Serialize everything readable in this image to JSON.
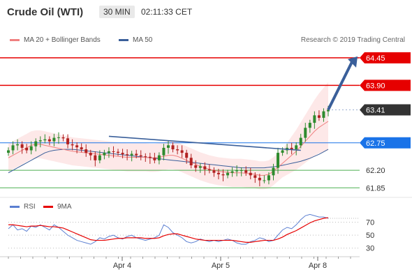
{
  "header": {
    "title": "Crude Oil (WTI)",
    "timeframe": "30 MIN",
    "time": "02:11:33 CET"
  },
  "legend": {
    "ma20_label": "MA 20 + Bollinger Bands",
    "ma50_label": "MA 50",
    "credit": "Research © 2019 Trading Central",
    "rsi_label": "RSI",
    "ma9_label": "9MA"
  },
  "colors": {
    "ma20": "#f08080",
    "ma50": "#3a5f9a",
    "resistance": "#e60000",
    "support": "#4caf50",
    "trend": "#3a5f9a",
    "current": "#333333",
    "pivot": "#1a73e8",
    "rsi": "#5b7fd1",
    "ma9": "#e60000"
  },
  "chart_data": [
    {
      "type": "candlestick",
      "x_labels": [
        "Apr 4",
        "Apr 5",
        "Apr 8"
      ],
      "price_levels": [
        {
          "value": 64.45,
          "label": "64.45",
          "role": "resistance"
        },
        {
          "value": 63.9,
          "label": "63.90",
          "role": "resistance"
        },
        {
          "value": 63.41,
          "label": "63.41",
          "role": "current"
        },
        {
          "value": 62.75,
          "label": "62.75",
          "role": "pivot"
        },
        {
          "value": 62.2,
          "label": "62.20",
          "role": "support"
        },
        {
          "value": 61.85,
          "label": "61.85",
          "role": "support"
        }
      ],
      "ylim": [
        61.7,
        64.7
      ],
      "close": [
        62.6,
        62.7,
        62.72,
        62.65,
        62.6,
        62.68,
        62.78,
        62.8,
        62.82,
        62.78,
        62.85,
        62.86,
        62.84,
        62.72,
        62.7,
        62.66,
        62.62,
        62.55,
        62.5,
        62.4,
        62.5,
        62.55,
        62.58,
        62.57,
        62.55,
        62.52,
        62.5,
        62.53,
        62.5,
        62.48,
        62.47,
        62.45,
        62.4,
        62.5,
        62.65,
        62.7,
        62.62,
        62.6,
        62.55,
        62.45,
        62.3,
        62.25,
        62.28,
        62.22,
        62.2,
        62.15,
        62.12,
        62.1,
        62.15,
        62.18,
        62.2,
        62.2,
        62.15,
        62.1,
        62.05,
        62.0,
        62.0,
        62.1,
        62.25,
        62.55,
        62.6,
        62.65,
        62.62,
        62.7,
        62.85,
        63.05,
        63.15,
        63.3,
        63.25,
        63.38,
        63.41
      ],
      "ma20": [
        62.45,
        62.5,
        62.55,
        62.6,
        62.65,
        62.7,
        62.72,
        62.72,
        62.7,
        62.68,
        62.66,
        62.64,
        62.62,
        62.6,
        62.58,
        62.57,
        62.56,
        62.55,
        62.54,
        62.53,
        62.52,
        62.51,
        62.5,
        62.49,
        62.48,
        62.47,
        62.46,
        62.46,
        62.46,
        62.46,
        62.46,
        62.45,
        62.45,
        62.46,
        62.48,
        62.5,
        62.5,
        62.48,
        62.44,
        62.4,
        62.36,
        62.32,
        62.28,
        62.25,
        62.22,
        62.2,
        62.18,
        62.17,
        62.16,
        62.15,
        62.15,
        62.15,
        62.14,
        62.13,
        62.12,
        62.1,
        62.1,
        62.12,
        62.18,
        62.26,
        62.34,
        62.42,
        62.5,
        62.58,
        62.68,
        62.78,
        62.88,
        62.98,
        63.06,
        63.12,
        63.18
      ],
      "ma50": [
        62.15,
        62.2,
        62.25,
        62.3,
        62.35,
        62.4,
        62.45,
        62.5,
        62.55,
        62.58,
        62.6,
        62.61,
        62.62,
        62.62,
        62.62,
        62.61,
        62.6,
        62.59,
        62.58,
        62.57,
        62.56,
        62.55,
        62.54,
        62.53,
        62.52,
        62.51,
        62.5,
        62.49,
        62.48,
        62.47,
        62.46,
        62.45,
        62.44,
        62.43,
        62.42,
        62.41,
        62.4,
        62.39,
        62.38,
        62.37,
        62.36,
        62.35,
        62.34,
        62.33,
        62.32,
        62.31,
        62.3,
        62.29,
        62.28,
        62.27,
        62.26,
        62.25,
        62.25,
        62.25,
        62.25,
        62.25,
        62.25,
        62.26,
        62.27,
        62.28,
        62.3,
        62.32,
        62.34,
        62.36,
        62.38,
        62.41,
        62.44,
        62.48,
        62.52,
        62.57,
        62.62
      ],
      "projection": {
        "from": 63.41,
        "to": 64.45
      }
    },
    {
      "type": "line",
      "name": "RSI",
      "yticks": [
        30,
        50,
        70
      ],
      "ylim": [
        20,
        90
      ],
      "values": [
        60,
        66,
        58,
        60,
        56,
        64,
        62,
        66,
        62,
        58,
        66,
        62,
        56,
        50,
        46,
        42,
        40,
        38,
        36,
        40,
        46,
        44,
        48,
        50,
        46,
        44,
        48,
        50,
        46,
        44,
        42,
        44,
        46,
        50,
        66,
        62,
        54,
        50,
        46,
        40,
        38,
        40,
        44,
        42,
        40,
        42,
        40,
        42,
        44,
        42,
        38,
        36,
        36,
        40,
        42,
        46,
        44,
        40,
        42,
        50,
        58,
        62,
        60,
        66,
        74,
        80,
        82,
        80,
        78,
        78,
        76
      ],
      "ma9": [
        66,
        66,
        65,
        64,
        63,
        64,
        64,
        65,
        64,
        63,
        63,
        62,
        61,
        58,
        55,
        52,
        49,
        46,
        43,
        42,
        42,
        42,
        43,
        44,
        45,
        45,
        46,
        46,
        46,
        46,
        45,
        45,
        45,
        46,
        49,
        51,
        52,
        52,
        50,
        48,
        46,
        44,
        43,
        42,
        42,
        42,
        42,
        42,
        42,
        42,
        41,
        40,
        39,
        39,
        40,
        41,
        42,
        42,
        42,
        44,
        47,
        51,
        54,
        57,
        61,
        65,
        69,
        72,
        74,
        76,
        77
      ]
    }
  ]
}
